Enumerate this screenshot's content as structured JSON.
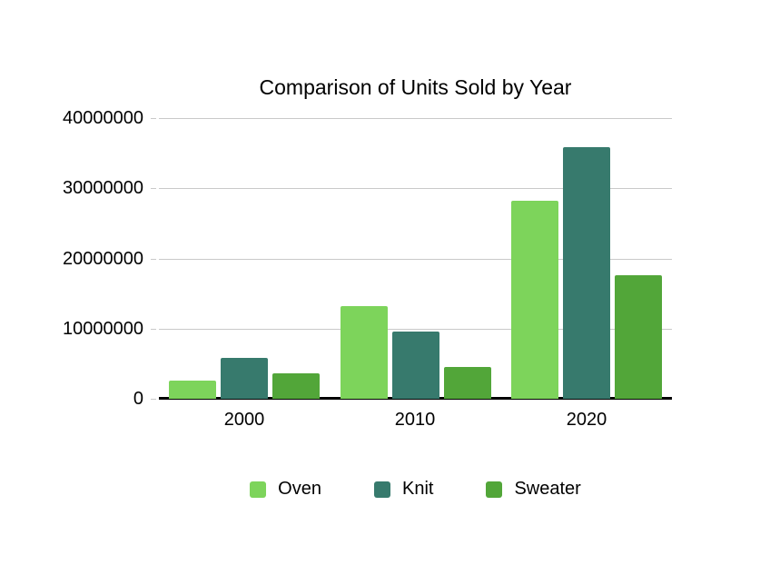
{
  "chart_data": {
    "type": "bar",
    "title": "Comparison of Units Sold by Year",
    "categories": [
      "2000",
      "2010",
      "2020"
    ],
    "series": [
      {
        "name": "Oven",
        "color": "#7dd45b",
        "values": [
          2600000,
          13200000,
          28200000
        ]
      },
      {
        "name": "Knit",
        "color": "#377a6d",
        "values": [
          5800000,
          9600000,
          35800000
        ]
      },
      {
        "name": "Sweater",
        "color": "#52a639",
        "values": [
          3600000,
          4500000,
          17600000
        ]
      }
    ],
    "ylim": [
      0,
      40000000
    ],
    "yticks": [
      40000000,
      30000000,
      20000000,
      10000000,
      0
    ],
    "ytick_labels": [
      "40000000",
      "30000000",
      "20000000",
      "10000000",
      "0"
    ],
    "xlabel": "",
    "ylabel": "",
    "grid": true,
    "legend_position": "bottom",
    "colors": {
      "grid": "#c9c9c9",
      "axis": "#000000",
      "text": "#000000",
      "background": "#ffffff"
    }
  }
}
